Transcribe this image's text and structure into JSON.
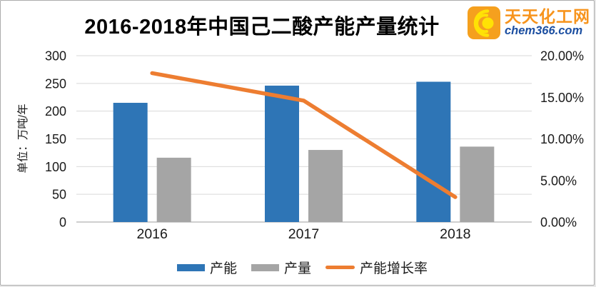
{
  "header": {
    "title": "2016-2018年中国己二酸产能产量统计"
  },
  "logo": {
    "site_name": "天天化工网",
    "domain": "chem366.com",
    "icon": "concentric-arcs-icon",
    "colors": {
      "box": "#F5A01E",
      "arcs": "#FFE205",
      "site_name_text": "#F7941D",
      "domain_text": "#1C4FA1"
    }
  },
  "chart_data": {
    "type": "combo-bar-line",
    "title": "2016-2018年中国己二酸产能产量统计",
    "categories": [
      "2016",
      "2017",
      "2018"
    ],
    "series": [
      {
        "key": "capacity",
        "name": "产能",
        "type": "bar",
        "axis": "left",
        "color": "#2E75B6",
        "values": [
          215,
          246,
          253
        ]
      },
      {
        "key": "output",
        "name": "产量",
        "type": "bar",
        "axis": "left",
        "color": "#A5A5A5",
        "values": [
          116,
          130,
          136
        ]
      },
      {
        "key": "growth-rate",
        "name": "产能增长率",
        "type": "line",
        "axis": "right",
        "color": "#ED7D31",
        "values": [
          17.9,
          14.6,
          3.0
        ]
      }
    ],
    "left_axis": {
      "title": "单位：万吨/年",
      "min": 0,
      "max": 300,
      "step": 50,
      "ticks": [
        "0",
        "50",
        "100",
        "150",
        "200",
        "250",
        "300"
      ]
    },
    "right_axis": {
      "min": 0,
      "max": 20,
      "step": 5,
      "ticks": [
        "0.00%",
        "5.00%",
        "10.00%",
        "15.00%",
        "20.00%"
      ]
    },
    "grid": true,
    "gridline_color": "#d9d9d9",
    "axisline_color": "#bfbfbf",
    "legend_position": "bottom"
  }
}
